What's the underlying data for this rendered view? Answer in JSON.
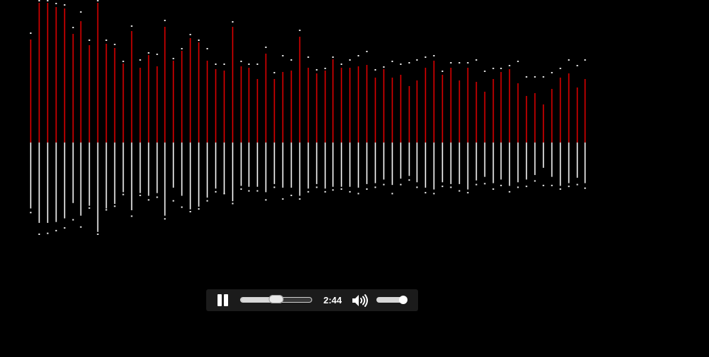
{
  "visualizer": {
    "colors": {
      "top_bar": "#e00000",
      "bottom_bar": "#ffffff",
      "peak_dot": "#ffffff",
      "background": "#000000"
    },
    "top_levels": [
      0.73,
      0.99,
      0.99,
      0.96,
      0.95,
      0.77,
      0.86,
      0.69,
      0.99,
      0.7,
      0.67,
      0.56,
      0.79,
      0.53,
      0.62,
      0.54,
      0.82,
      0.58,
      0.65,
      0.74,
      0.71,
      0.58,
      0.52,
      0.51,
      0.82,
      0.54,
      0.53,
      0.45,
      0.63,
      0.45,
      0.5,
      0.51,
      0.75,
      0.53,
      0.49,
      0.51,
      0.59,
      0.53,
      0.53,
      0.54,
      0.55,
      0.46,
      0.52,
      0.46,
      0.48,
      0.4,
      0.44,
      0.53,
      0.58,
      0.48,
      0.53,
      0.44,
      0.53,
      0.43,
      0.36,
      0.45,
      0.5,
      0.52,
      0.42,
      0.33,
      0.35,
      0.27,
      0.38,
      0.46,
      0.49,
      0.39,
      0.45
    ],
    "top_peaks": [
      0.77,
      1.0,
      1.0,
      0.98,
      0.97,
      0.81,
      0.92,
      0.72,
      1.0,
      0.72,
      0.69,
      0.57,
      0.82,
      0.58,
      0.63,
      0.62,
      0.86,
      0.59,
      0.66,
      0.76,
      0.72,
      0.66,
      0.55,
      0.55,
      0.85,
      0.57,
      0.55,
      0.55,
      0.67,
      0.49,
      0.61,
      0.58,
      0.79,
      0.6,
      0.51,
      0.52,
      0.6,
      0.55,
      0.58,
      0.61,
      0.64,
      0.51,
      0.53,
      0.57,
      0.55,
      0.56,
      0.58,
      0.6,
      0.61,
      0.5,
      0.56,
      0.56,
      0.56,
      0.58,
      0.5,
      0.52,
      0.52,
      0.54,
      0.57,
      0.46,
      0.46,
      0.46,
      0.49,
      0.52,
      0.58,
      0.54,
      0.58
    ],
    "bottom_levels": [
      0.73,
      0.89,
      0.89,
      0.88,
      0.84,
      0.67,
      0.81,
      0.7,
      0.99,
      0.73,
      0.68,
      0.55,
      0.75,
      0.56,
      0.59,
      0.56,
      0.81,
      0.5,
      0.59,
      0.74,
      0.71,
      0.61,
      0.51,
      0.56,
      0.65,
      0.48,
      0.49,
      0.49,
      0.55,
      0.46,
      0.5,
      0.5,
      0.59,
      0.51,
      0.46,
      0.51,
      0.49,
      0.49,
      0.49,
      0.5,
      0.46,
      0.45,
      0.41,
      0.47,
      0.4,
      0.37,
      0.44,
      0.5,
      0.52,
      0.44,
      0.46,
      0.46,
      0.52,
      0.42,
      0.38,
      0.45,
      0.41,
      0.48,
      0.44,
      0.41,
      0.36,
      0.28,
      0.38,
      0.48,
      0.45,
      0.39,
      0.45
    ],
    "bottom_peaks": [
      0.76,
      1.0,
      0.99,
      0.96,
      0.93,
      0.84,
      0.92,
      0.71,
      1.0,
      0.73,
      0.69,
      0.56,
      0.8,
      0.57,
      0.62,
      0.59,
      0.83,
      0.63,
      0.7,
      0.75,
      0.72,
      0.63,
      0.53,
      0.55,
      0.66,
      0.5,
      0.52,
      0.52,
      0.62,
      0.48,
      0.61,
      0.57,
      0.61,
      0.53,
      0.48,
      0.53,
      0.51,
      0.5,
      0.53,
      0.55,
      0.5,
      0.48,
      0.45,
      0.55,
      0.45,
      0.4,
      0.48,
      0.54,
      0.55,
      0.47,
      0.48,
      0.52,
      0.54,
      0.45,
      0.44,
      0.5,
      0.46,
      0.53,
      0.48,
      0.47,
      0.41,
      0.46,
      0.46,
      0.5,
      0.47,
      0.45,
      0.49
    ]
  },
  "player": {
    "state": "playing",
    "pause_icon": "pause-icon",
    "volume_icon": "speaker-high-icon",
    "time_text": "2:44",
    "seek_progress": 0.5,
    "volume_level": 1.0,
    "colors": {
      "background": "#1b1b1b",
      "foreground": "#ffffff"
    }
  }
}
